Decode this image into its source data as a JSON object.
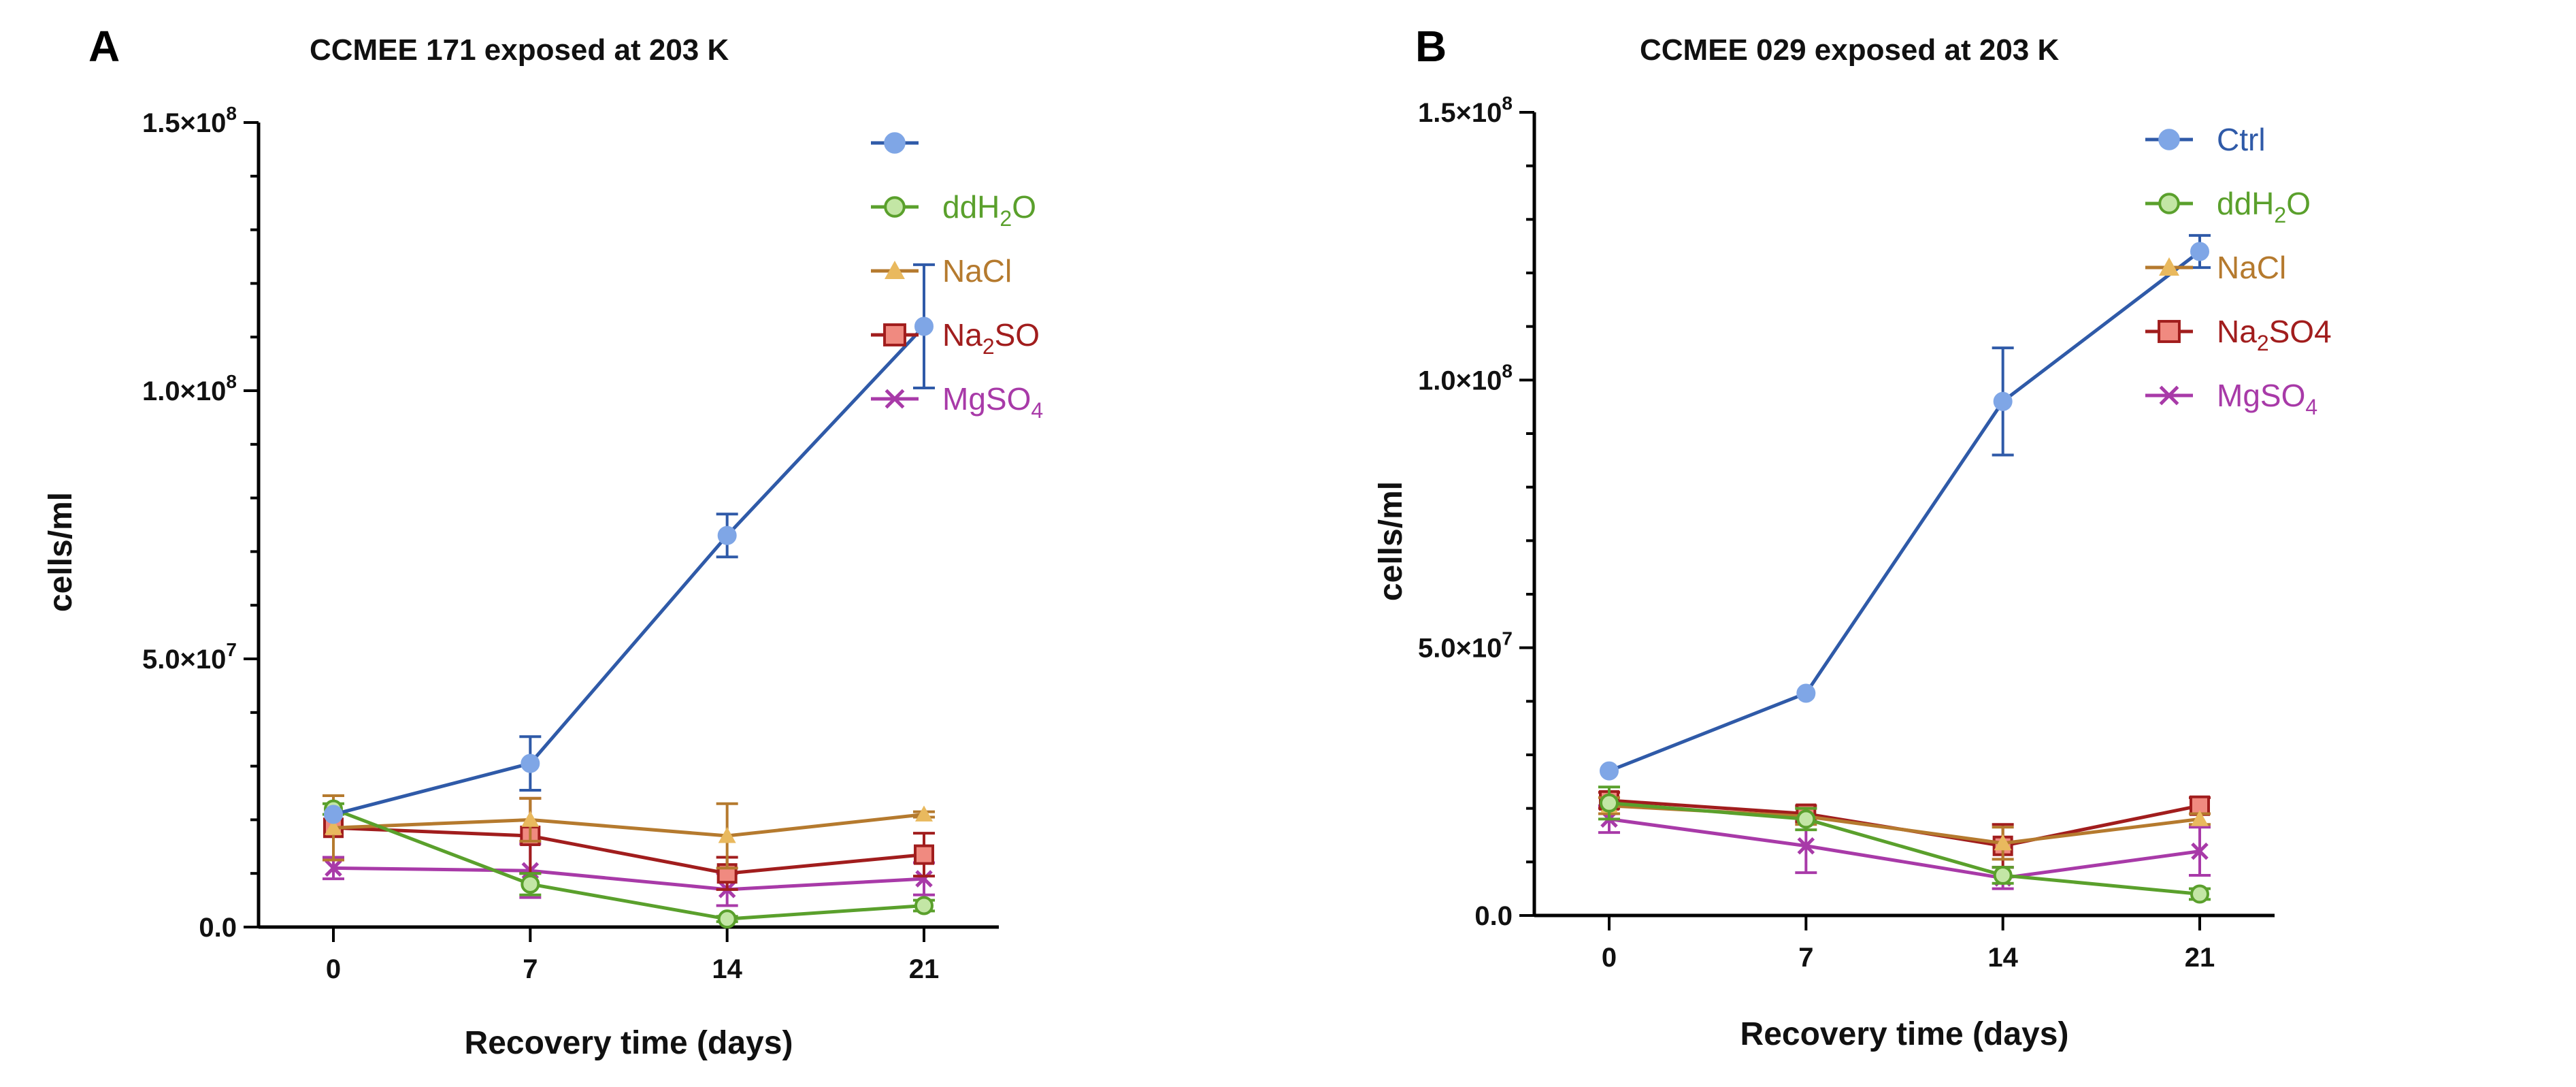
{
  "chart_data": [
    {
      "type": "line",
      "panel_letter": "A",
      "title": "CCMEE 171 exposed at 203 K",
      "xlabel": "Recovery time (days)",
      "ylabel": "cells/ml",
      "x": [
        0,
        7,
        14,
        21
      ],
      "x_tick_labels": [
        "0",
        "7",
        "14",
        "21"
      ],
      "ylim": [
        0,
        150000000
      ],
      "y_ticks": [
        0,
        50000000,
        100000000,
        150000000
      ],
      "y_tick_labels": [
        {
          "base": "0.0",
          "exp": ""
        },
        {
          "base": "5.0×10",
          "exp": "7"
        },
        {
          "base": "1.0×10",
          "exp": "8"
        },
        {
          "base": "1.5×10",
          "exp": "8"
        }
      ],
      "grid": false,
      "legend_position": "top-right",
      "series": [
        {
          "legend": {
            "main": "",
            "sub": "",
            "tail": ""
          },
          "color": "#2f5aa8",
          "marker_color": "#7fa6e6",
          "marker": "circle",
          "values": [
            21000000,
            30500000,
            73000000,
            112000000
          ],
          "errors": [
            0,
            5000000,
            4000000,
            11500000
          ]
        },
        {
          "legend": {
            "main": "ddH",
            "sub": "2",
            "tail": "O"
          },
          "color": "#5aa02c",
          "marker_color": "#c3e6a5",
          "marker": "circle",
          "values": [
            22000000,
            8000000,
            1500000,
            4000000
          ],
          "errors": [
            1000000,
            2000000,
            500000,
            1000000
          ]
        },
        {
          "legend": {
            "main": "NaCl",
            "sub": "",
            "tail": ""
          },
          "color": "#b57a2e",
          "marker_color": "#e9b95e",
          "marker": "triangle",
          "values": [
            18500000,
            20000000,
            17000000,
            21000000
          ],
          "errors": [
            6000000,
            4000000,
            6000000,
            500000
          ]
        },
        {
          "legend": {
            "main": "Na",
            "sub": "2",
            "tail": "SO"
          },
          "color": "#a11d1d",
          "marker_color": "#f08a80",
          "marker": "square",
          "values": [
            18500000,
            17000000,
            10000000,
            13500000
          ],
          "errors": [
            6000000,
            7000000,
            3000000,
            4000000
          ]
        },
        {
          "legend": {
            "main": "MgSO",
            "sub": "4",
            "tail": ""
          },
          "color": "#a83aa8",
          "marker_color": "#a83aa8",
          "marker": "x",
          "values": [
            11000000,
            10500000,
            7000000,
            9000000
          ],
          "errors": [
            2000000,
            5000000,
            3000000,
            3000000
          ]
        }
      ]
    },
    {
      "type": "line",
      "panel_letter": "B",
      "title": "CCMEE 029 exposed at 203 K",
      "xlabel": "Recovery time (days)",
      "ylabel": "cells/ml",
      "x": [
        0,
        7,
        14,
        21
      ],
      "x_tick_labels": [
        "0",
        "7",
        "14",
        "21"
      ],
      "ylim": [
        0,
        150000000
      ],
      "y_ticks": [
        0,
        50000000,
        100000000,
        150000000
      ],
      "y_tick_labels": [
        {
          "base": "0.0",
          "exp": ""
        },
        {
          "base": "5.0×10",
          "exp": "7"
        },
        {
          "base": "1.0×10",
          "exp": "8"
        },
        {
          "base": "1.5×10",
          "exp": "8"
        }
      ],
      "grid": false,
      "legend_position": "top-right",
      "series": [
        {
          "legend": {
            "main": "Ctrl",
            "sub": "",
            "tail": ""
          },
          "color": "#2f5aa8",
          "marker_color": "#7fa6e6",
          "marker": "circle",
          "values": [
            27000000,
            41500000,
            96000000,
            124000000
          ],
          "errors": [
            0,
            0,
            10000000,
            3000000
          ]
        },
        {
          "legend": {
            "main": "ddH",
            "sub": "2",
            "tail": "O"
          },
          "color": "#5aa02c",
          "marker_color": "#c3e6a5",
          "marker": "circle",
          "values": [
            21000000,
            18000000,
            7500000,
            4000000
          ],
          "errors": [
            3000000,
            2000000,
            1500000,
            1000000
          ]
        },
        {
          "legend": {
            "main": "NaCl",
            "sub": "",
            "tail": ""
          },
          "color": "#b57a2e",
          "marker_color": "#e9b95e",
          "marker": "triangle",
          "values": [
            20500000,
            18500000,
            13500000,
            18000000
          ],
          "errors": [
            1500000,
            1500000,
            3000000,
            1000000
          ]
        },
        {
          "legend": {
            "main": "Na",
            "sub": "2",
            "tail": "SO4"
          },
          "color": "#a11d1d",
          "marker_color": "#f08a80",
          "marker": "square",
          "values": [
            21500000,
            19000000,
            13000000,
            20500000
          ],
          "errors": [
            1500000,
            1500000,
            4000000,
            1500000
          ]
        },
        {
          "legend": {
            "main": "MgSO",
            "sub": "4",
            "tail": ""
          },
          "color": "#a83aa8",
          "marker_color": "#a83aa8",
          "marker": "x",
          "values": [
            18000000,
            13000000,
            7000000,
            12000000
          ],
          "errors": [
            2500000,
            5000000,
            2000000,
            4500000
          ]
        }
      ]
    }
  ]
}
